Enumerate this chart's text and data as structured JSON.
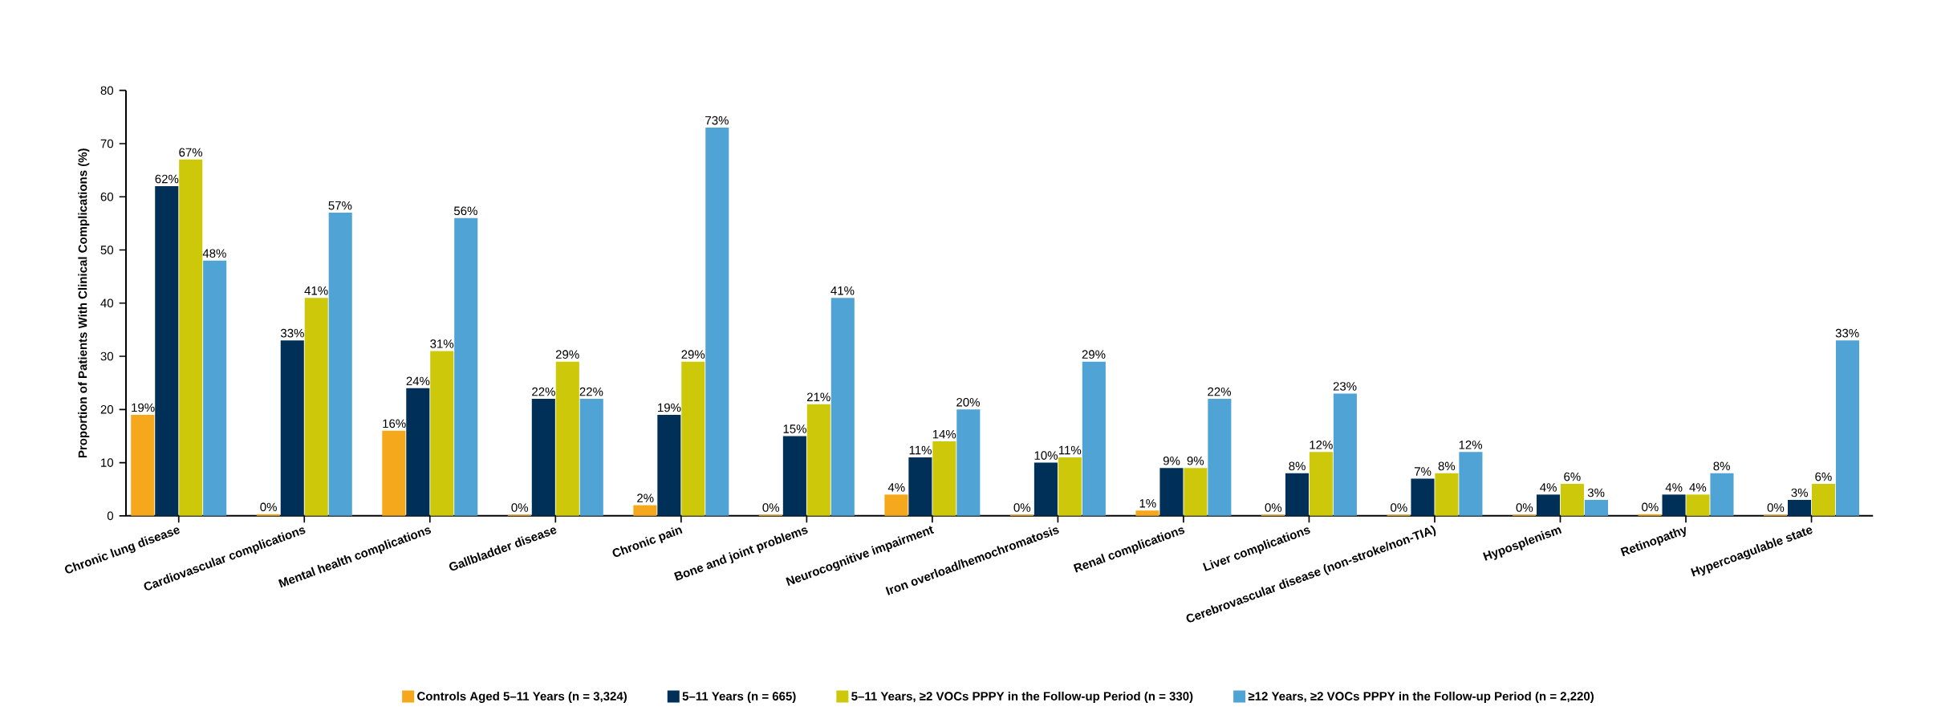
{
  "chart_data": {
    "type": "bar",
    "ylabel": "Proportion of Patients With Clinical Complications (%)",
    "categories": [
      "Chronic lung disease",
      "Cardiovascular complications",
      "Mental health complications",
      "Gallbladder disease",
      "Chronic pain",
      "Bone and joint problems",
      "Neurocognitive impairment",
      "Iron overload/hemochromatosis",
      "Renal complications",
      "Liver complications",
      "Cerebrovascular disease (non-stroke/non-TIA)",
      "Hyposplenism",
      "Retinopathy",
      "Hypercoagulable state"
    ],
    "series": [
      {
        "name": "Controls Aged 5–11 Years (n = 3,324)",
        "color": "#f5a81c",
        "values": [
          19,
          0.3,
          16,
          0.2,
          2,
          0.2,
          4,
          0.2,
          1,
          0.2,
          0.2,
          0.2,
          0.3,
          0.2
        ],
        "value_labels": [
          "19%",
          "0%",
          "16%",
          "0%",
          "2%",
          "0%",
          "4%",
          "0%",
          "1%",
          "0%",
          "0%",
          "0%",
          "0%",
          "0%"
        ]
      },
      {
        "name": "5–11 Years (n = 665)",
        "color": "#003057",
        "values": [
          62,
          33,
          24,
          22,
          19,
          15,
          11,
          10,
          9,
          8,
          7,
          4,
          4,
          3
        ],
        "value_labels": [
          "62%",
          "33%",
          "24%",
          "22%",
          "19%",
          "15%",
          "11%",
          "10%",
          "9%",
          "8%",
          "7%",
          "4%",
          "4%",
          "3%"
        ]
      },
      {
        "name": "5–11 Years, ≥2 VOCs PPPY in the Follow-up Period (n = 330)",
        "color": "#cdc90a",
        "values": [
          67,
          41,
          31,
          29,
          29,
          21,
          14,
          11,
          9,
          12,
          8,
          6,
          4,
          6
        ],
        "value_labels": [
          "67%",
          "41%",
          "31%",
          "29%",
          "29%",
          "21%",
          "14%",
          "11%",
          "9%",
          "12%",
          "8%",
          "6%",
          "4%",
          "6%"
        ]
      },
      {
        "name": "≥12 Years, ≥2 VOCs PPPY in the Follow-up Period (n = 2,220)",
        "color": "#4fa3d5",
        "values": [
          48,
          57,
          56,
          22,
          73,
          41,
          20,
          29,
          22,
          23,
          12,
          3,
          8,
          33
        ],
        "value_labels": [
          "48%",
          "57%",
          "56%",
          "22%",
          "73%",
          "41%",
          "20%",
          "29%",
          "22%",
          "23%",
          "12%",
          "3%",
          "8%",
          "33%"
        ]
      }
    ],
    "ylim": [
      0,
      80
    ],
    "yticks": [
      0,
      10,
      20,
      30,
      40,
      50,
      60,
      70,
      80
    ],
    "grid": false,
    "legend": "bottom"
  }
}
